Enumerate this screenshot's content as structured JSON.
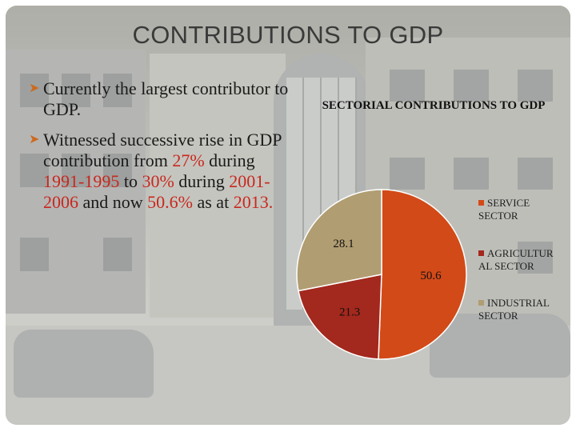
{
  "slide": {
    "title": "CONTRIBUTIONS TO GDP",
    "bullets": [
      {
        "text": "Currently the largest contributor to GDP."
      },
      {
        "parts": [
          {
            "text": "Witnessed successive rise in GDP contribution from ",
            "highlight": false
          },
          {
            "text": "27%",
            "highlight": true
          },
          {
            "text": " during ",
            "highlight": false
          },
          {
            "text": "1991-1995",
            "highlight": true
          },
          {
            "text": " to ",
            "highlight": false
          },
          {
            "text": "30%",
            "highlight": true
          },
          {
            "text": " during ",
            "highlight": false
          },
          {
            "text": "2001-2006",
            "highlight": true
          },
          {
            "text": " and now ",
            "highlight": false
          },
          {
            "text": "50.6%",
            "highlight": true
          },
          {
            "text": " as at ",
            "highlight": false
          },
          {
            "text": "2013.",
            "highlight": true
          }
        ]
      }
    ],
    "colors": {
      "highlight": "#c8281e",
      "bullet_arrow": "#cc6a1f"
    }
  },
  "chart_data": {
    "type": "pie",
    "title": "SECTORIAL CONTRIBUTIONS TO GDP",
    "categories": [
      "SERVICE SECTOR",
      "AGRICULTURAL SECTOR",
      "INDUSTRIAL SECTOR"
    ],
    "values": [
      50.6,
      21.3,
      28.1
    ],
    "value_labels": [
      "50.6",
      "21.3",
      "28.1"
    ],
    "legend_labels": [
      [
        "SERVICE",
        "SECTOR"
      ],
      [
        "AGRICULTUR",
        "AL SECTOR"
      ],
      [
        "INDUSTRIAL",
        "SECTOR"
      ]
    ],
    "colors": [
      "#d24a18",
      "#a3281d",
      "#b19d72"
    ],
    "legend_position": "right"
  }
}
